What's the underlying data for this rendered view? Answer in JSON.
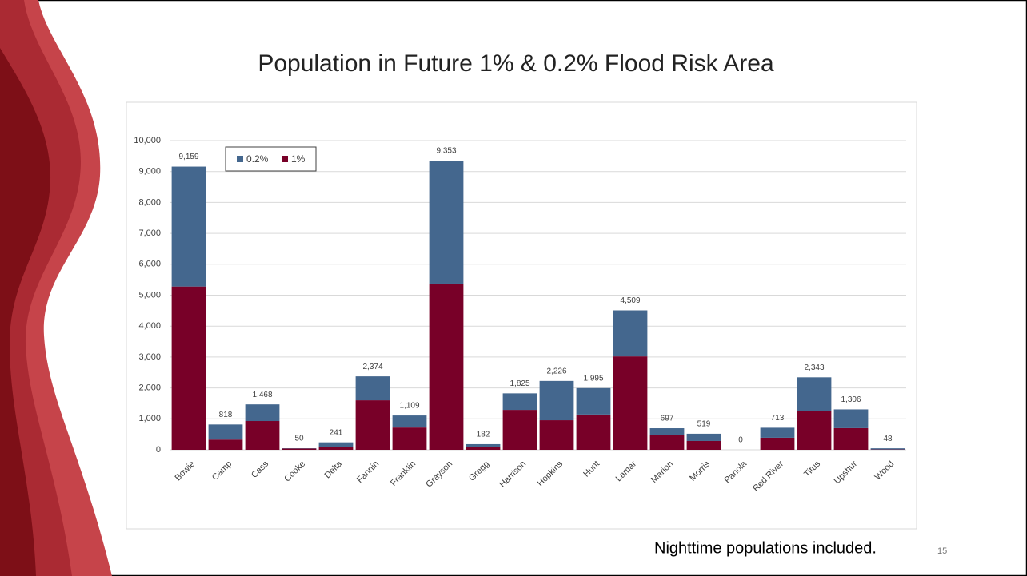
{
  "title": "Population in Future 1% & 0.2% Flood Risk Area",
  "footnote": "Nighttime populations included.",
  "page_number": "15",
  "chart_data": {
    "type": "stacked_bar",
    "categories": [
      "Bowie",
      "Camp",
      "Cass",
      "Cooke",
      "Delta",
      "Fannin",
      "Franklin",
      "Grayson",
      "Gregg",
      "Harrison",
      "Hopkins",
      "Hunt",
      "Lamar",
      "Marion",
      "Morris",
      "Panola",
      "Red River",
      "Titus",
      "Upshur",
      "Wood"
    ],
    "series": [
      {
        "name": "0.2%",
        "color": "#44678e",
        "values": [
          3879,
          488,
          538,
          10,
          141,
          774,
          389,
          3978,
          102,
          535,
          1271,
          855,
          1489,
          232,
          234,
          0,
          323,
          1078,
          606,
          38
        ]
      },
      {
        "name": "1%",
        "color": "#780028",
        "values": [
          5280,
          330,
          930,
          40,
          100,
          1600,
          720,
          5375,
          80,
          1290,
          955,
          1140,
          3020,
          465,
          285,
          0,
          390,
          1265,
          700,
          10
        ]
      }
    ],
    "totals": [
      9159,
      818,
      1468,
      50,
      241,
      2374,
      1109,
      9353,
      182,
      1825,
      2226,
      1995,
      4509,
      697,
      519,
      0,
      713,
      2343,
      1306,
      48
    ],
    "total_labels": [
      "9,159",
      "818",
      "1,468",
      "50",
      "241",
      "2,374",
      "1,109",
      "9,353",
      "182",
      "1,825",
      "2,226",
      "1,995",
      "4,509",
      "697",
      "519",
      "0",
      "713",
      "2,343",
      "1,306",
      "48"
    ],
    "ylim": [
      0,
      10000
    ],
    "yticks": [
      0,
      {
        "value": 1000,
        "label": "1,000"
      },
      {
        "value": 2000,
        "label": "2,000"
      },
      {
        "value": 3000,
        "label": "3,000"
      },
      {
        "value": 4000,
        "label": "4,000"
      },
      {
        "value": 5000,
        "label": "5,000"
      },
      {
        "value": 6000,
        "label": "6,000"
      },
      {
        "value": 7000,
        "label": "7,000"
      },
      {
        "value": 8000,
        "label": "8,000"
      },
      {
        "value": 9000,
        "label": "9,000"
      },
      {
        "value": 10000,
        "label": "10,000"
      }
    ],
    "grid": true,
    "legend": "top-left"
  }
}
